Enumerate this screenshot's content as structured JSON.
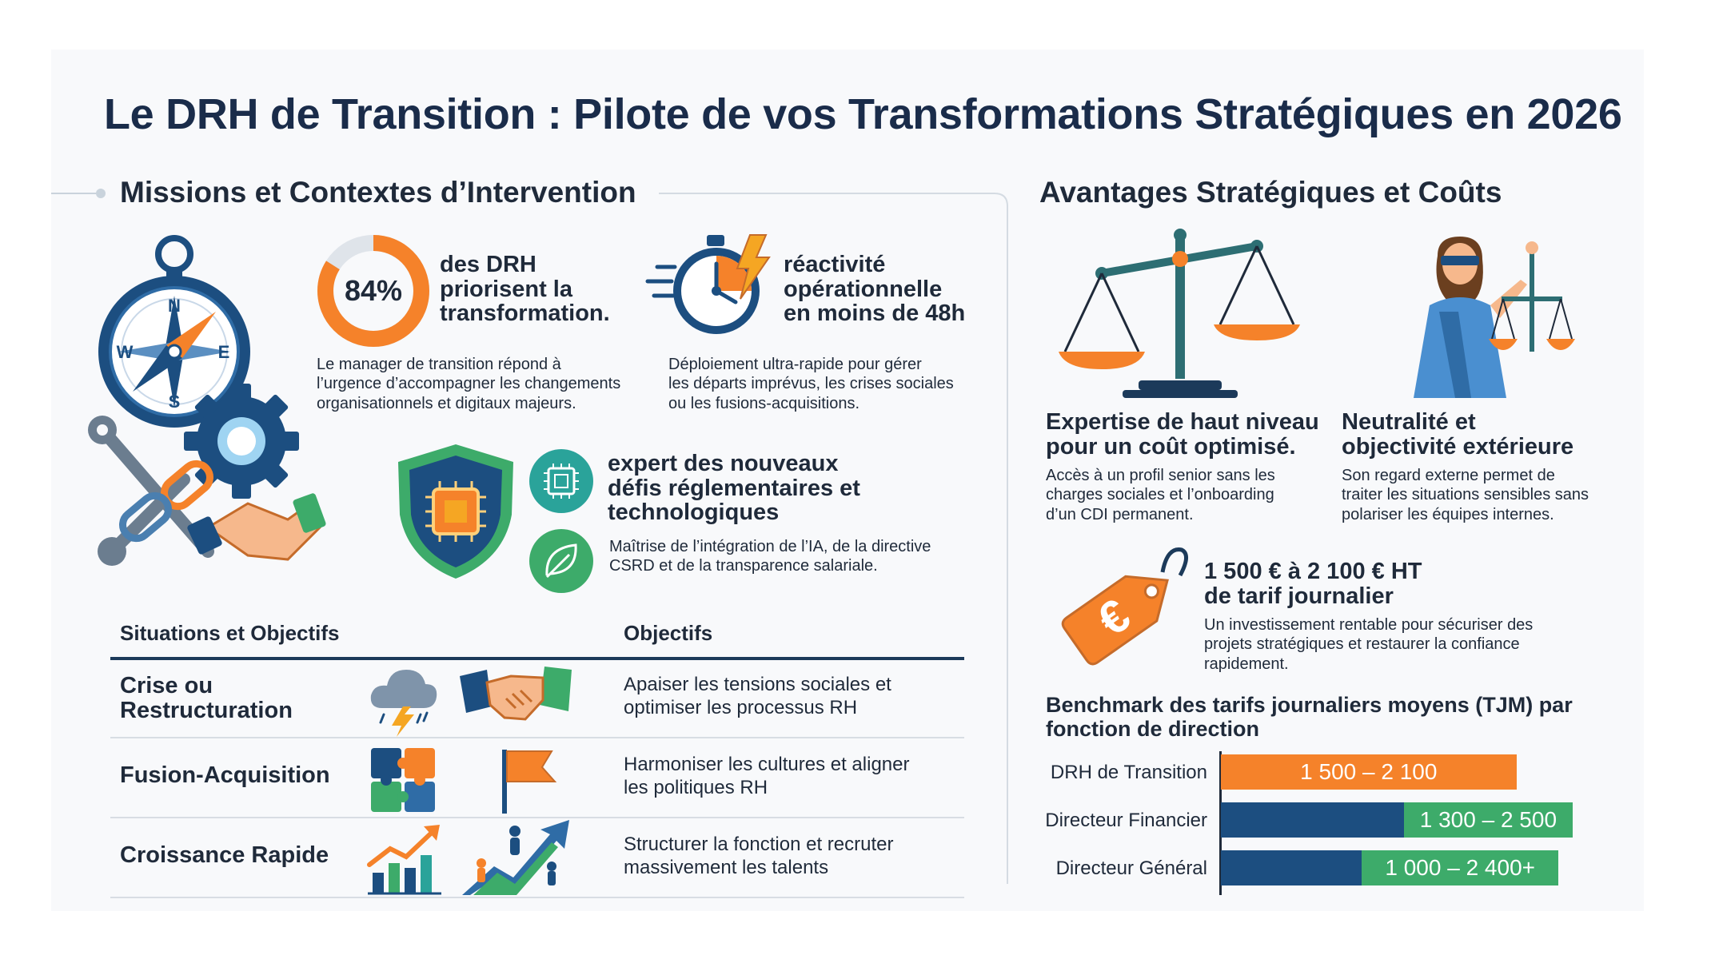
{
  "title": "Le DRH de Transition : Pilote de vos Transformations Stratégiques en 2026",
  "colors": {
    "navy": "#1c4e80",
    "orange": "#f5822a",
    "green": "#3dab6a",
    "teal": "#2aa39a",
    "text": "#1f2a3a"
  },
  "missions": {
    "title": "Missions et Contextes d’Intervention",
    "stat1": {
      "value": "84%",
      "percent": 84,
      "headline": [
        "des DRH",
        "priorisent la",
        "transformation."
      ],
      "desc": [
        "Le manager de transition répond à",
        "l’urgence d’accompagner les changements",
        "organisationnels et digitaux majeurs."
      ]
    },
    "stat2": {
      "headline": [
        "réactivité",
        "opérationnelle",
        "en moins de 48h"
      ],
      "desc": [
        "Déploiement ultra-rapide pour gérer",
        "les départs imprévus, les crises sociales",
        "ou les fusions-acquisitions."
      ]
    },
    "expert": {
      "headline": [
        "expert des nouveaux",
        "défis réglementaires et",
        "technologiques"
      ],
      "desc": [
        "Maîtrise de l’intégration de l’IA, de la directive",
        "CSRD et de la transparence salariale."
      ]
    },
    "compass_letters": {
      "n": "N",
      "s": "S",
      "e": "E",
      "w": "W"
    },
    "table": {
      "col1": "Situations et Objectifs",
      "col2": "Objectifs",
      "rows": [
        {
          "label": [
            "Crise ou",
            "Restructuration"
          ],
          "desc": [
            "Apaiser les tensions sociales et",
            "optimiser les processus RH"
          ],
          "icons": [
            "storm-cloud-icon",
            "handshake-icon"
          ]
        },
        {
          "label": [
            "Fusion-Acquisition"
          ],
          "desc": [
            "Harmoniser les cultures et aligner",
            "les politiques RH"
          ],
          "icons": [
            "puzzle-icon",
            "flag-icon"
          ]
        },
        {
          "label": [
            "Croissance Rapide"
          ],
          "desc": [
            "Structurer la fonction et recruter",
            "massivement les talents"
          ],
          "icons": [
            "growth-chart-icon",
            "climbing-arrow-icon"
          ]
        }
      ]
    }
  },
  "avantages": {
    "title": "Avantages Stratégiques et Coûts",
    "expertise": {
      "headline": [
        "Expertise de haut niveau",
        "pour un coût optimisé."
      ],
      "desc": [
        "Accès à un profil senior sans les",
        "charges sociales et l’onboarding",
        "d’un CDI permanent."
      ]
    },
    "neutralite": {
      "headline": [
        "Neutralité et",
        "objectivité extérieure"
      ],
      "desc": [
        "Son regard externe permet de",
        "traiter les situations sensibles sans",
        "polariser les équipes internes."
      ]
    },
    "tarif": {
      "tag_symbol": "€",
      "headline": [
        "1 500 € à 2 100 € HT",
        "de tarif journalier"
      ],
      "desc": [
        "Un investissement rentable pour sécuriser des",
        "projets stratégiques et restaurer la confiance",
        "rapidement."
      ]
    },
    "benchmark": {
      "title": [
        "Benchmark des tarifs journaliers moyens (TJM) par",
        "fonction de direction"
      ]
    }
  },
  "chart_data": {
    "type": "bar",
    "orientation": "horizontal",
    "stacked_range": true,
    "title": "Benchmark des tarifs journaliers moyens (TJM) par fonction de direction",
    "categories": [
      "DRH de Transition",
      "Directeur Financier",
      "Directeur Général"
    ],
    "ranges": [
      {
        "min": 1500,
        "max": 2100,
        "label": "1 500 – 2 100",
        "base_color": "#f5822a",
        "range_color": "#f5822a"
      },
      {
        "min": 1300,
        "max": 2500,
        "label": "1 300 – 2 500",
        "base_color": "#1c4e80",
        "range_color": "#3dab6a"
      },
      {
        "min": 1000,
        "max": 2400,
        "label": "1 000 – 2 400+",
        "base_color": "#1c4e80",
        "range_color": "#3dab6a"
      }
    ],
    "xlim": [
      0,
      2500
    ],
    "grid": false,
    "xlabel": "",
    "ylabel": ""
  }
}
